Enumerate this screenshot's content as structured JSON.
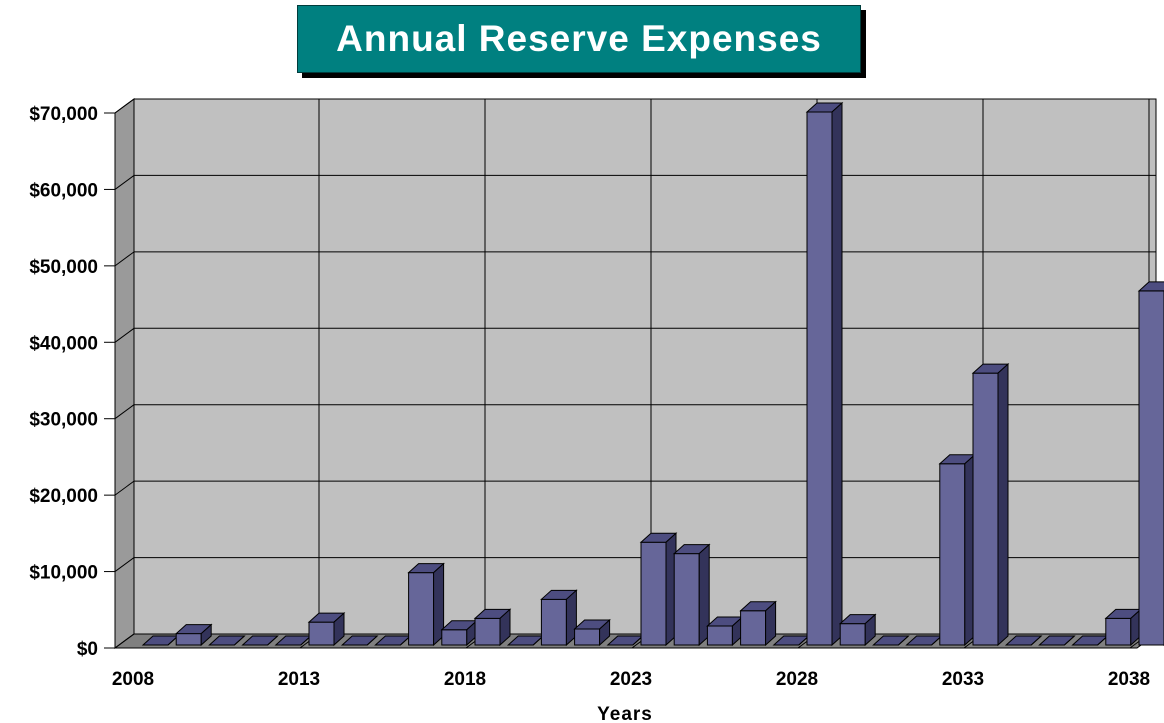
{
  "chart_data": {
    "type": "bar",
    "title": "Annual Reserve Expenses",
    "xlabel": "Years",
    "ylabel": "",
    "ylim": [
      0,
      70000
    ],
    "y_ticks": [
      "$0",
      "$10,000",
      "$20,000",
      "$30,000",
      "$40,000",
      "$50,000",
      "$60,000",
      "$70,000"
    ],
    "x_ticks": [
      "2008",
      "2013",
      "2018",
      "2023",
      "2028",
      "2033",
      "2038"
    ],
    "grid": true,
    "categories": [
      2008,
      2009,
      2010,
      2011,
      2012,
      2013,
      2014,
      2015,
      2016,
      2017,
      2018,
      2019,
      2020,
      2021,
      2022,
      2023,
      2024,
      2025,
      2026,
      2027,
      2028,
      2029,
      2030,
      2031,
      2032,
      2033,
      2034,
      2035,
      2036,
      2037,
      2038
    ],
    "values": [
      0,
      1500,
      0,
      0,
      0,
      3000,
      0,
      0,
      9500,
      2000,
      3500,
      0,
      6000,
      2100,
      0,
      13500,
      12000,
      2500,
      4500,
      0,
      70000,
      2800,
      0,
      0,
      23800,
      35700,
      0,
      0,
      0,
      3500,
      46500
    ],
    "colors": {
      "bar": "#666699",
      "plot_bg": "#c0c0c0",
      "title_bg": "#008080"
    }
  }
}
